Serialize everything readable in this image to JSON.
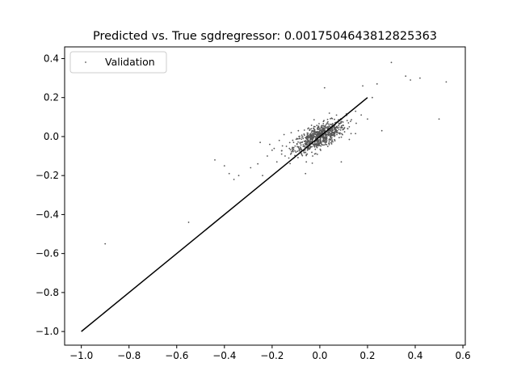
{
  "chart_data": {
    "type": "scatter",
    "title": "Predicted vs. True sgdregressor: 0.0017504643812825363",
    "xlabel": "",
    "ylabel": "",
    "xlim": [
      -1.07,
      0.61
    ],
    "ylim": [
      -1.07,
      0.46
    ],
    "grid": false,
    "legend": {
      "placement": "top-left",
      "entries": [
        "Validation"
      ]
    },
    "x_ticks": [
      -1.0,
      -0.8,
      -0.6,
      -0.4,
      -0.2,
      0.0,
      0.2,
      0.4,
      0.6
    ],
    "x_tick_labels": [
      "−1.0",
      "−0.8",
      "−0.6",
      "−0.4",
      "−0.2",
      "0.0",
      "0.2",
      "0.4",
      "0.6"
    ],
    "y_ticks": [
      -1.0,
      -0.8,
      -0.6,
      -0.4,
      -0.2,
      0.0,
      0.2,
      0.4
    ],
    "y_tick_labels": [
      "−1.0",
      "−0.8",
      "−0.6",
      "−0.4",
      "−0.2",
      "0.0",
      "0.2",
      "0.4"
    ],
    "reference_line": {
      "x": [
        -1.0,
        0.2
      ],
      "y": [
        -1.0,
        0.2
      ],
      "color": "#000000"
    },
    "series": [
      {
        "name": "Validation",
        "color": "#555555",
        "points": [
          [
            -0.9,
            -0.55
          ],
          [
            -0.55,
            -0.44
          ],
          [
            -0.44,
            -0.12
          ],
          [
            -0.4,
            -0.15
          ],
          [
            -0.38,
            -0.19
          ],
          [
            -0.36,
            -0.22
          ],
          [
            -0.34,
            -0.2
          ],
          [
            -0.29,
            -0.16
          ],
          [
            -0.26,
            -0.14
          ],
          [
            -0.25,
            -0.03
          ],
          [
            -0.24,
            -0.2
          ],
          [
            -0.22,
            -0.1
          ],
          [
            -0.21,
            -0.04
          ],
          [
            -0.2,
            -0.07
          ],
          [
            -0.18,
            -0.13
          ],
          [
            -0.17,
            -0.02
          ],
          [
            -0.16,
            -0.09
          ],
          [
            -0.15,
            0.01
          ],
          [
            -0.14,
            -0.05
          ],
          [
            -0.13,
            -0.11
          ],
          [
            -0.12,
            0.02
          ],
          [
            -0.11,
            -0.03
          ],
          [
            -0.1,
            -0.08
          ],
          [
            -0.09,
            0.03
          ],
          [
            -0.08,
            -0.06
          ],
          [
            -0.07,
            -0.01
          ],
          [
            -0.06,
            -0.19
          ],
          [
            -0.05,
            0.04
          ],
          [
            -0.04,
            -0.04
          ],
          [
            -0.03,
            -0.1
          ],
          [
            0.02,
            0.25
          ],
          [
            0.04,
            0.12
          ],
          [
            0.07,
            0.11
          ],
          [
            0.09,
            -0.13
          ],
          [
            0.12,
            0.07
          ],
          [
            0.15,
            0.13
          ],
          [
            0.18,
            0.26
          ],
          [
            0.2,
            0.09
          ],
          [
            0.22,
            0.2
          ],
          [
            0.24,
            0.27
          ],
          [
            0.26,
            0.03
          ],
          [
            0.3,
            0.38
          ],
          [
            0.36,
            0.31
          ],
          [
            0.38,
            0.29
          ],
          [
            0.42,
            0.3
          ],
          [
            0.5,
            0.09
          ],
          [
            0.53,
            0.28
          ]
        ]
      }
    ]
  }
}
